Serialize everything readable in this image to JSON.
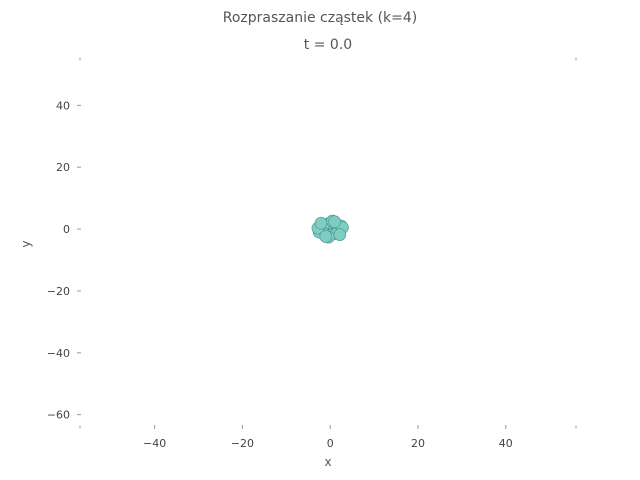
{
  "chart_data": {
    "type": "scatter",
    "title": "Rozpraszanie cząstek (k=4)",
    "subtitle": "t = 0.0",
    "xlabel": "x",
    "ylabel": "y",
    "xlim": [
      -57,
      56
    ],
    "ylim": [
      -64,
      55
    ],
    "xticks": [
      -40,
      -20,
      0,
      20,
      40
    ],
    "yticks": [
      40,
      20,
      0,
      -20,
      -40,
      -60
    ],
    "grid": false,
    "legend": "none",
    "colors": {
      "particles": "#7ecdc3",
      "edge": "#4a8f88"
    },
    "series": [
      {
        "points": [
          [
            0,
            0
          ],
          [
            1,
            1
          ],
          [
            -1,
            1
          ],
          [
            1,
            -1
          ],
          [
            -1,
            -1
          ],
          [
            2,
            0
          ],
          [
            -2,
            0
          ],
          [
            0,
            2
          ],
          [
            0,
            -2
          ],
          [
            1.5,
            1.5
          ],
          [
            -1.5,
            1.5
          ],
          [
            1.5,
            -1.5
          ],
          [
            -1.5,
            -1.5
          ],
          [
            2.5,
            1
          ],
          [
            -2.5,
            -1
          ],
          [
            2.8,
            0.5
          ],
          [
            -2.8,
            0.3
          ],
          [
            0.5,
            2.6
          ],
          [
            -0.4,
            -2.6
          ],
          [
            2.2,
            -1.8
          ],
          [
            -2.1,
            1.9
          ],
          [
            1,
            2.4
          ],
          [
            -1,
            -2.4
          ]
        ]
      }
    ]
  }
}
